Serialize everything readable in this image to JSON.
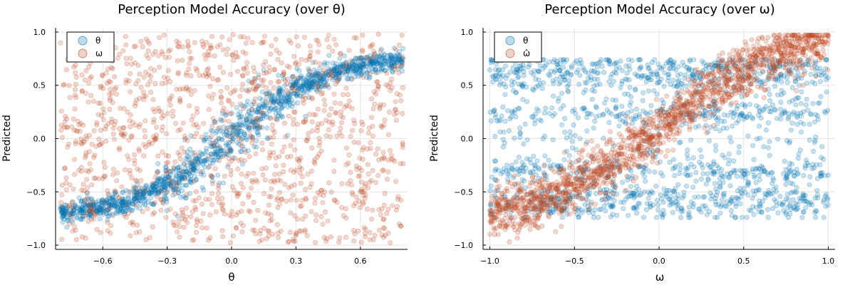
{
  "chart_data": [
    {
      "type": "scatter",
      "title": "Perception Model Accuracy (over θ)",
      "xlabel": "θ",
      "ylabel": "Predicted",
      "xlim": [
        -0.82,
        0.82
      ],
      "ylim": [
        -1.04,
        1.04
      ],
      "xticks": [
        -0.6,
        -0.3,
        0.0,
        0.3,
        0.6
      ],
      "xtick_labels": [
        "−0.6",
        "−0.3",
        "0.0",
        "0.3",
        "0.6"
      ],
      "yticks": [
        -1.0,
        -0.5,
        0.0,
        0.5,
        1.0
      ],
      "ytick_labels": [
        "−1.0",
        "−0.5",
        "0.0",
        "0.5",
        "1.0"
      ],
      "grid": true,
      "legend_position": "top-left",
      "series": [
        {
          "name": "θ",
          "color": "#0072B2",
          "description_points": [
            [
              -0.8,
              -0.7
            ],
            [
              -0.7,
              -0.68
            ],
            [
              -0.6,
              -0.63
            ],
            [
              -0.5,
              -0.57
            ],
            [
              -0.4,
              -0.48
            ],
            [
              -0.3,
              -0.38
            ],
            [
              -0.2,
              -0.25
            ],
            [
              -0.1,
              -0.1
            ],
            [
              0.0,
              0.05
            ],
            [
              0.1,
              0.16
            ],
            [
              0.2,
              0.27
            ],
            [
              0.3,
              0.38
            ],
            [
              0.4,
              0.5
            ],
            [
              0.5,
              0.6
            ],
            [
              0.6,
              0.67
            ],
            [
              0.7,
              0.72
            ],
            [
              0.8,
              0.73
            ]
          ]
        },
        {
          "name": "ω",
          "color": "#C04A23",
          "description_points": [
            [
              -0.8,
              -1.0
            ],
            [
              -0.8,
              1.0
            ],
            [
              0.8,
              -1.0
            ],
            [
              0.8,
              1.0
            ]
          ]
        }
      ]
    },
    {
      "type": "scatter",
      "title": "Perception Model Accuracy (over ω)",
      "xlabel": "ω",
      "ylabel": "Predicted",
      "xlim": [
        -1.04,
        1.04
      ],
      "ylim": [
        -1.04,
        1.04
      ],
      "xticks": [
        -1.0,
        -0.5,
        0.0,
        0.5,
        1.0
      ],
      "xtick_labels": [
        "−1.0",
        "−0.5",
        "0.0",
        "0.5",
        "1.0"
      ],
      "yticks": [
        -1.0,
        -0.5,
        0.0,
        0.5,
        1.0
      ],
      "ytick_labels": [
        "−1.0",
        "−0.5",
        "0.0",
        "0.5",
        "1.0"
      ],
      "grid": true,
      "legend_position": "top-left",
      "series": [
        {
          "name": "θ",
          "color": "#0072B2",
          "description_points": [
            [
              -1.0,
              0.72
            ],
            [
              1.0,
              0.72
            ],
            [
              -1.0,
              -0.72
            ],
            [
              1.0,
              -0.72
            ]
          ]
        },
        {
          "name": "ω̂",
          "color": "#C04A23",
          "description_points": [
            [
              -1.0,
              -0.85
            ],
            [
              -0.5,
              -0.4
            ],
            [
              0.0,
              0.1
            ],
            [
              0.5,
              0.55
            ],
            [
              1.0,
              0.85
            ]
          ]
        }
      ]
    }
  ]
}
